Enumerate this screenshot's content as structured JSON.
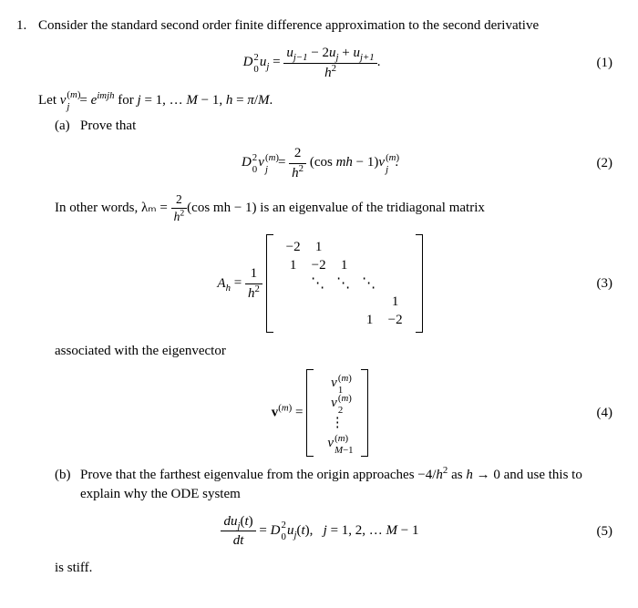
{
  "problem": {
    "number": "1.",
    "intro": "Consider the standard second order finite difference approximation to the second derivative",
    "eq1": {
      "lhs": "D₀² uⱼ =",
      "numerator": "uⱼ₋₁ − 2uⱼ + uⱼ₊₁",
      "denominator": "h²",
      "trail": ".",
      "label": "(1)"
    },
    "let_line": {
      "pre": "Let ",
      "vj": "vⱼ",
      "sup": "(m)",
      "mid": " = e",
      "expo": "imjh",
      "post": " for j = 1, … M − 1, h = π/M."
    },
    "partA": {
      "tag": "(a)",
      "text": "Prove that",
      "eq2": {
        "lhs": "D₀² vⱼ",
        "sup": "(m)",
        "mid": " = ",
        "frac_num": "2",
        "frac_den": "h²",
        "rhs": "(cos mh − 1)vⱼ",
        "rhs_sup": "(m)",
        "trail": ".",
        "label": "(2)"
      },
      "eigen_text_pre": "In other words, λₘ = ",
      "eigen_frac_num": "2",
      "eigen_frac_den": "h²",
      "eigen_text_post": "(cos mh − 1) is an eigenvalue of the tridiagonal matrix",
      "eq3": {
        "Ah": "Aₕ = ",
        "frac_num": "1",
        "frac_den": "h²",
        "matrix": [
          [
            "−2",
            "1",
            "",
            "",
            ""
          ],
          [
            "1",
            "−2",
            "1",
            "",
            ""
          ],
          [
            "",
            "⋱",
            "⋱",
            "⋱",
            ""
          ],
          [
            "",
            "",
            "",
            "",
            "1"
          ],
          [
            "",
            "",
            "",
            "1",
            "−2"
          ]
        ],
        "label": "(3)"
      },
      "assoc_text": "associated with the eigenvector",
      "eq4": {
        "lhs": "v",
        "lhs_sup": "(m)",
        "mid": " = ",
        "vector": [
          "v₁",
          "v₂",
          "⋮",
          "v"
        ],
        "vec_sup": "(m)",
        "last_sub": "M−1",
        "label": "(4)"
      }
    },
    "partB": {
      "tag": "(b)",
      "text1": "Prove that the farthest eigenvalue from the origin approaches −4/h² as h → 0 and use this to explain why the ODE system",
      "eq5": {
        "frac_num": "duⱼ(t)",
        "frac_den": "dt",
        "rhs": " = D₀² uⱼ(t),   j = 1, 2, … M − 1",
        "label": "(5)"
      },
      "text2": "is stiff."
    }
  },
  "style": {
    "font_family": "Times New Roman",
    "text_color": "#000000",
    "background_color": "#ffffff",
    "body_fontsize": 15,
    "eq_label_fontsize": 15
  }
}
